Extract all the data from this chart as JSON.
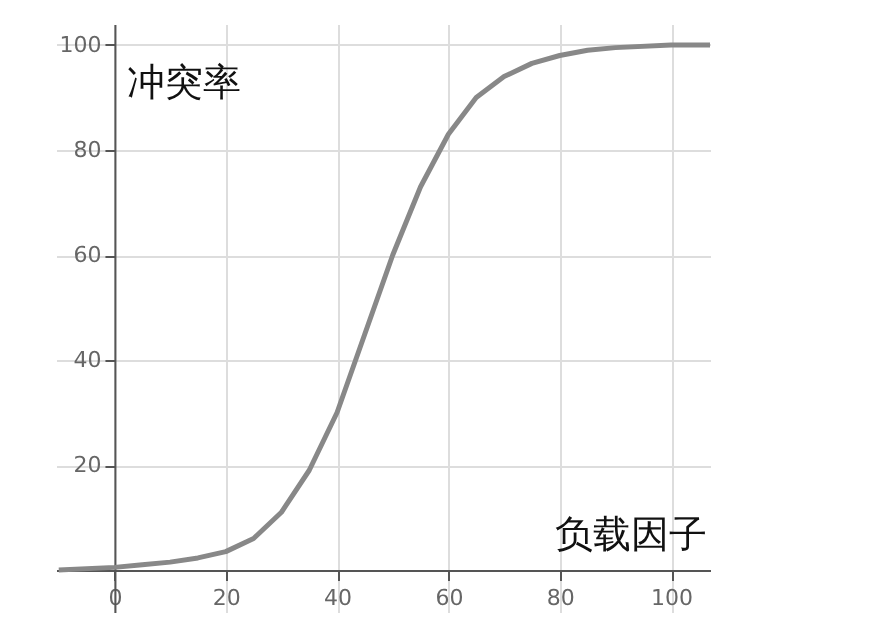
{
  "chart_data": {
    "type": "line",
    "xlabel": "负载因子",
    "ylabel": "冲突率",
    "x": [
      -10,
      0,
      5,
      10,
      15,
      20,
      25,
      30,
      35,
      40,
      45,
      50,
      55,
      60,
      65,
      70,
      75,
      80,
      85,
      90,
      100,
      107
    ],
    "series": [
      {
        "color": "#888888",
        "values": [
          0,
          0.5,
          1,
          1.5,
          2.3,
          3.5,
          6,
          11,
          19,
          30,
          45,
          60,
          73,
          83,
          90,
          94,
          96.5,
          98,
          99,
          99.5,
          100,
          100
        ]
      }
    ],
    "xlim": [
      -10.5,
      107
    ],
    "ylim": [
      -8,
      104
    ],
    "xticks": [
      0,
      20,
      40,
      60,
      80,
      100
    ],
    "yticks": [
      20,
      40,
      60,
      80,
      100
    ],
    "grid": true,
    "marker": "none",
    "line_style": "solid"
  }
}
